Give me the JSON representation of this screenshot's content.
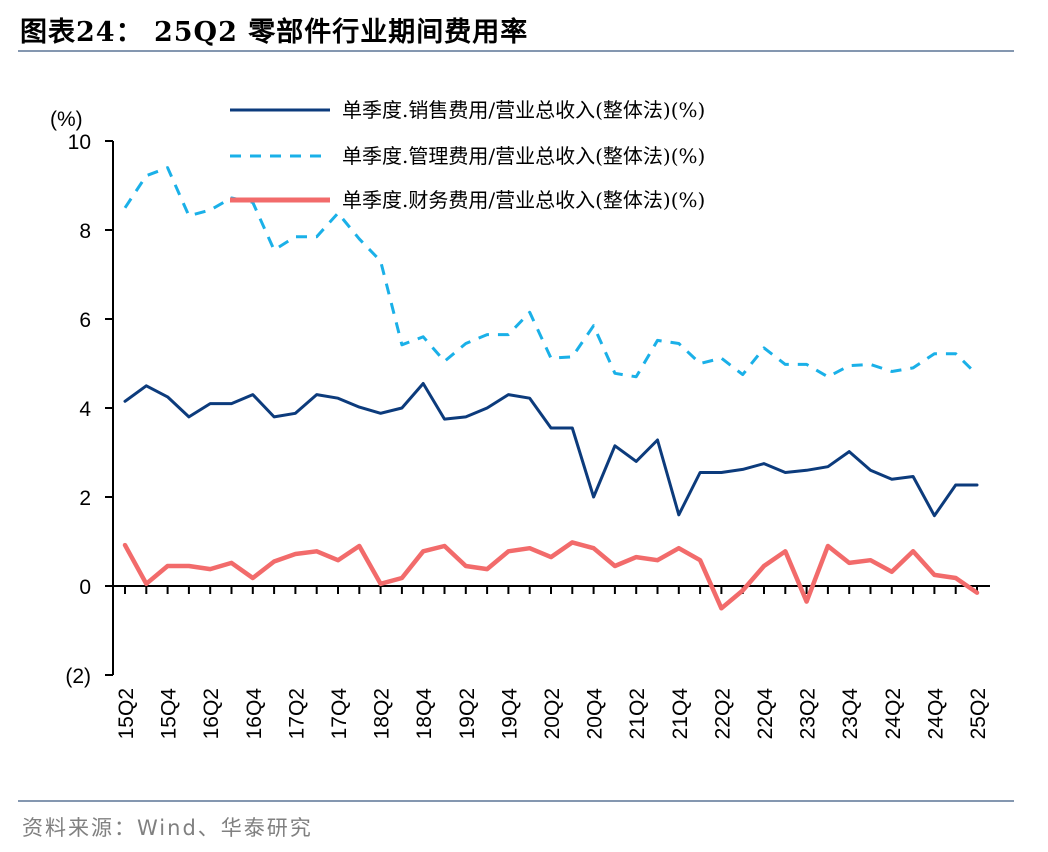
{
  "title": "图表24：  25Q2 零部件行业期间费用率",
  "source": "资料来源：Wind、华泰研究",
  "chart_data": {
    "type": "line",
    "unit_label": "(%)",
    "ylim": [
      -2,
      10
    ],
    "y_ticks": [
      -2,
      0,
      2,
      4,
      6,
      8,
      10
    ],
    "y_tick_labels": [
      "(2)",
      "0",
      "2",
      "4",
      "6",
      "8",
      "10"
    ],
    "x": [
      "15Q2",
      "15Q3",
      "15Q4",
      "16Q1",
      "16Q2",
      "16Q3",
      "16Q4",
      "17Q1",
      "17Q2",
      "17Q3",
      "17Q4",
      "18Q1",
      "18Q2",
      "18Q3",
      "18Q4",
      "19Q1",
      "19Q2",
      "19Q3",
      "19Q4",
      "20Q1",
      "20Q2",
      "20Q3",
      "20Q4",
      "21Q1",
      "21Q2",
      "21Q3",
      "21Q4",
      "22Q1",
      "22Q2",
      "22Q3",
      "22Q4",
      "23Q1",
      "23Q2",
      "23Q3",
      "23Q4",
      "24Q1",
      "24Q2",
      "24Q3",
      "24Q4",
      "25Q1",
      "25Q2"
    ],
    "x_tick_labels_shown": [
      "15Q2",
      "15Q4",
      "16Q2",
      "16Q4",
      "17Q2",
      "17Q4",
      "18Q2",
      "18Q4",
      "19Q2",
      "19Q4",
      "20Q2",
      "20Q4",
      "21Q2",
      "21Q4",
      "22Q2",
      "22Q4",
      "23Q2",
      "23Q4",
      "24Q2",
      "24Q4",
      "25Q2"
    ],
    "legend_position": "top-center",
    "grid": false,
    "series": [
      {
        "name": "单季度.销售费用/营业总收入(整体法)(%)",
        "color": "#0c3b7c",
        "style": "solid",
        "values": [
          4.15,
          4.5,
          4.25,
          3.8,
          4.1,
          4.1,
          4.3,
          3.8,
          3.88,
          4.3,
          4.22,
          4.02,
          3.88,
          4.0,
          4.55,
          3.75,
          3.8,
          4.0,
          4.3,
          4.22,
          3.55,
          3.55,
          2.0,
          3.15,
          2.8,
          3.28,
          1.6,
          2.55,
          2.55,
          2.62,
          2.75,
          2.55,
          2.6,
          2.68,
          3.02,
          2.6,
          2.4,
          2.46,
          1.58,
          2.27,
          2.27
        ]
      },
      {
        "name": "单季度.管理费用/营业总收入(整体法)(%)",
        "color": "#1ab0e8",
        "style": "dashed",
        "values": [
          8.5,
          9.22,
          9.4,
          8.32,
          8.45,
          8.72,
          8.62,
          7.55,
          7.85,
          7.85,
          8.38,
          7.8,
          7.3,
          5.42,
          5.6,
          5.05,
          5.45,
          5.65,
          5.65,
          6.15,
          5.12,
          5.15,
          5.85,
          4.78,
          4.7,
          5.52,
          5.45,
          5.0,
          5.12,
          4.75,
          5.35,
          4.98,
          4.98,
          4.7,
          4.95,
          4.98,
          4.82,
          4.9,
          5.22,
          5.22,
          4.75
        ]
      },
      {
        "name": "单季度.财务费用/营业总收入(整体法)(%)",
        "color": "#f26b6b",
        "style": "solid",
        "values": [
          0.92,
          0.05,
          0.45,
          0.45,
          0.38,
          0.52,
          0.18,
          0.55,
          0.72,
          0.78,
          0.58,
          0.9,
          0.05,
          0.18,
          0.78,
          0.9,
          0.45,
          0.38,
          0.78,
          0.85,
          0.65,
          0.98,
          0.85,
          0.45,
          0.65,
          0.58,
          0.85,
          0.58,
          -0.5,
          -0.1,
          0.45,
          0.78,
          -0.35,
          0.9,
          0.52,
          0.58,
          0.32,
          0.78,
          0.25,
          0.18,
          -0.15
        ]
      }
    ]
  }
}
